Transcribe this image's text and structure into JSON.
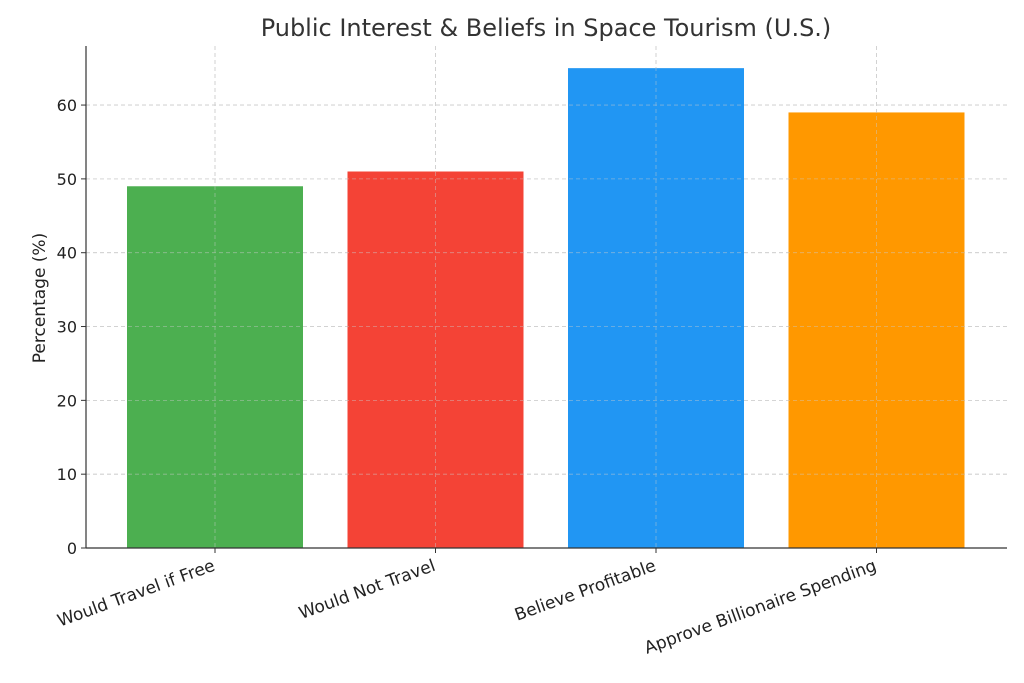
{
  "chart_data": {
    "type": "bar",
    "title": "Public Interest & Beliefs in Space Tourism (U.S.)",
    "xlabel": "",
    "ylabel": "Percentage (%)",
    "categories": [
      "Would Travel if Free",
      "Would Not Travel",
      "Believe Profitable",
      "Approve Billionaire Spending"
    ],
    "values": [
      49,
      51,
      65,
      59
    ],
    "colors": [
      "#4caf50",
      "#f44336",
      "#2196f3",
      "#ff9800"
    ],
    "ylim": [
      0,
      68
    ],
    "yticks": [
      0,
      10,
      20,
      30,
      40,
      50,
      60
    ],
    "grid": true,
    "legend": "none"
  }
}
